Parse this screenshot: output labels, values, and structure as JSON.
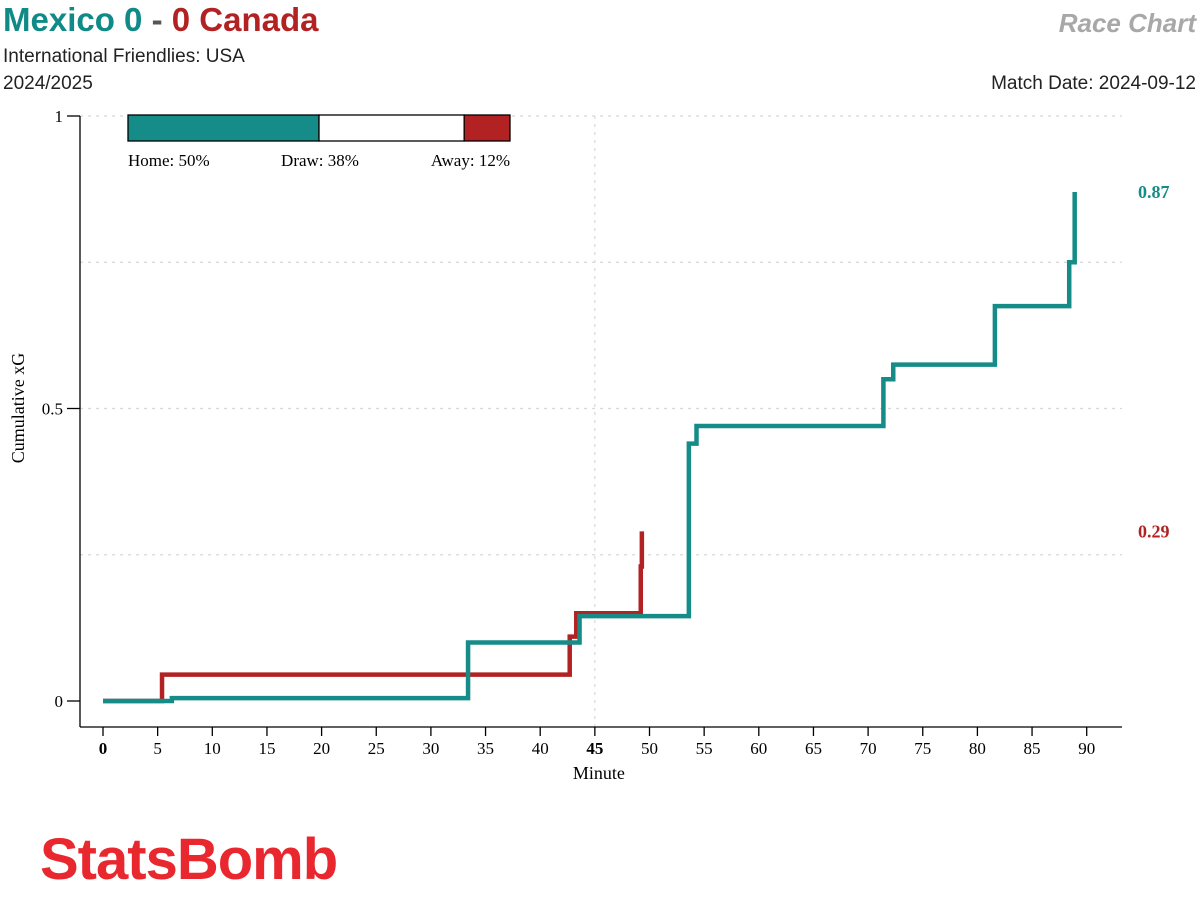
{
  "header": {
    "home_team": "Mexico",
    "home_score": "0",
    "separator": "-",
    "away_score": "0",
    "away_team": "Canada",
    "competition": "International Friendlies: USA",
    "season": "2024/2025",
    "chart_label": "Race Chart",
    "match_date": "Match Date: 2024-09-12"
  },
  "brand": {
    "name": "StatsBomb"
  },
  "colors": {
    "home": "#168c88",
    "away": "#b22222",
    "brand": "#e8282e"
  },
  "chart_data": {
    "type": "line",
    "title": "Race Chart",
    "xlabel": "Minute",
    "ylabel": "Cumulative xG",
    "xlim": [
      0,
      92
    ],
    "ylim": [
      0,
      1
    ],
    "x_ticks": [
      0,
      5,
      10,
      15,
      20,
      25,
      30,
      35,
      40,
      45,
      50,
      55,
      60,
      65,
      70,
      75,
      80,
      85,
      90
    ],
    "x_tick_labels": [
      "0",
      "5",
      "10",
      "15",
      "20",
      "25",
      "30",
      "35",
      "40",
      "45",
      "50",
      "55",
      "60",
      "65",
      "70",
      "75",
      "80",
      "85",
      "90"
    ],
    "y_ticks": [
      0,
      0.5,
      1
    ],
    "y_tick_labels": [
      "0",
      "0.5",
      "1"
    ],
    "series": [
      {
        "name": "Mexico",
        "side": "home",
        "steps": [
          {
            "minute": 0,
            "xg": 0
          },
          {
            "minute": 6.3,
            "xg": 0.005
          },
          {
            "minute": 33.4,
            "xg": 0.1
          },
          {
            "minute": 43.6,
            "xg": 0.145
          },
          {
            "minute": 53.6,
            "xg": 0.44
          },
          {
            "minute": 54.3,
            "xg": 0.47
          },
          {
            "minute": 71.4,
            "xg": 0.55
          },
          {
            "minute": 72.3,
            "xg": 0.575
          },
          {
            "minute": 81.6,
            "xg": 0.675
          },
          {
            "minute": 88.4,
            "xg": 0.75
          },
          {
            "minute": 88.9,
            "xg": 0.87
          }
        ],
        "end_minute": 88.9,
        "final_label": "0.87"
      },
      {
        "name": "Canada",
        "side": "away",
        "steps": [
          {
            "minute": 0,
            "xg": 0
          },
          {
            "minute": 5.4,
            "xg": 0.045
          },
          {
            "minute": 42.7,
            "xg": 0.11
          },
          {
            "minute": 43.3,
            "xg": 0.15
          },
          {
            "minute": 49.2,
            "xg": 0.23
          },
          {
            "minute": 49.3,
            "xg": 0.29
          }
        ],
        "end_minute": 49.3,
        "final_label": "0.29"
      }
    ],
    "win_probability": {
      "home": 0.5,
      "draw": 0.38,
      "away": 0.12,
      "home_label": "Home: 50%",
      "draw_label": "Draw: 38%",
      "away_label": "Away: 12%"
    },
    "grid": true,
    "half_time_marker": 45
  }
}
